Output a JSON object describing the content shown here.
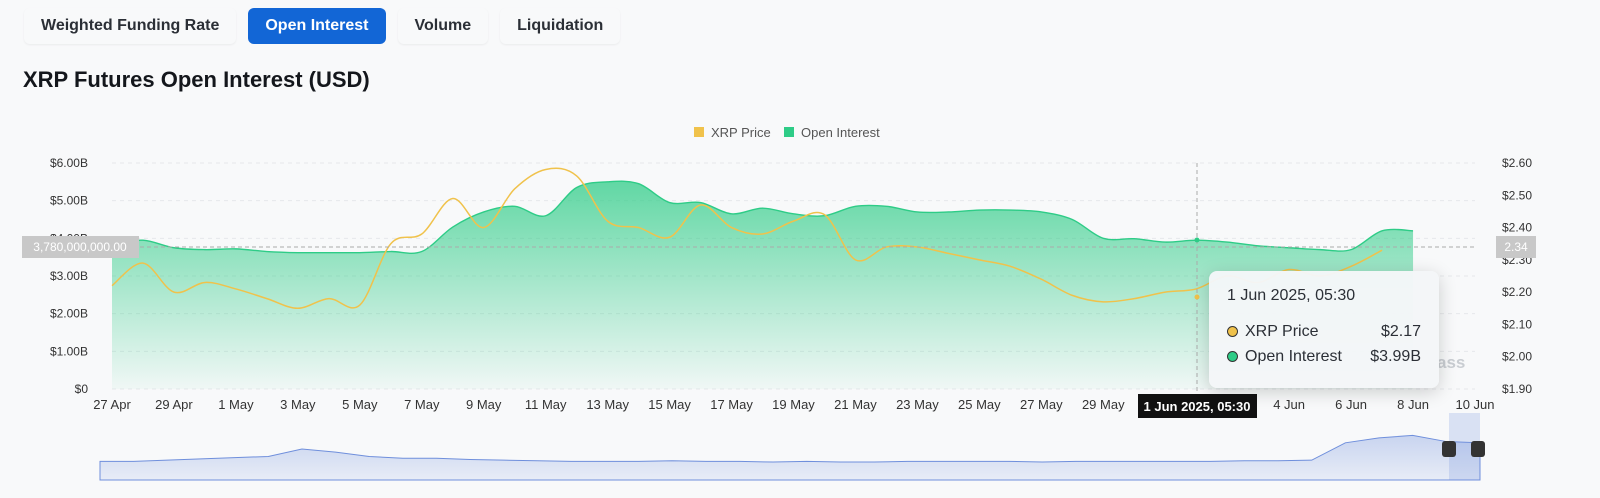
{
  "tabs": [
    {
      "label": "Weighted Funding Rate",
      "active": false
    },
    {
      "label": "Open Interest",
      "active": true
    },
    {
      "label": "Volume",
      "active": false
    },
    {
      "label": "Liquidation",
      "active": false
    }
  ],
  "title": "XRP Futures Open Interest (USD)",
  "colors": {
    "price": "#f0c24b",
    "oi": "#2ecc87",
    "accent": "#1266d6",
    "navigator": "#6f8fdc"
  },
  "crosshair": {
    "date_label": "1 Jun 2025, 05:30",
    "y_left_label": "3,780,000,000.00",
    "y_right_label": "2.34"
  },
  "tooltip": {
    "date": "1 Jun 2025, 05:30",
    "rows": [
      {
        "name": "XRP Price",
        "value": "$2.17",
        "color": "#f0c24b"
      },
      {
        "name": "Open Interest",
        "value": "$3.99B",
        "color": "#2ecc87"
      }
    ]
  },
  "watermark": "ass",
  "chart_data": {
    "type": "area",
    "title": "XRP Futures Open Interest (USD)",
    "legend": [
      "XRP Price",
      "Open Interest"
    ],
    "legend_position": "top-center",
    "x_tick_labels": [
      "27 Apr",
      "29 Apr",
      "1 May",
      "3 May",
      "5 May",
      "7 May",
      "9 May",
      "11 May",
      "13 May",
      "15 May",
      "17 May",
      "19 May",
      "21 May",
      "23 May",
      "25 May",
      "27 May",
      "29 May",
      "4 Jun",
      "6 Jun",
      "8 Jun",
      "10 Jun"
    ],
    "y_left_ticks": [
      "$0",
      "$1.00B",
      "$2.00B",
      "$3.00B",
      "$4.00B",
      "$5.00B",
      "$6.00B"
    ],
    "y_left_range": [
      0,
      6
    ],
    "y_right_ticks": [
      "$1.90",
      "$2.00",
      "$2.10",
      "$2.20",
      "$2.30",
      "$2.40",
      "$2.50",
      "$2.60"
    ],
    "y_right_range": [
      1.9,
      2.6
    ],
    "x_range_days": [
      0,
      44
    ],
    "series": [
      {
        "name": "Open Interest",
        "unit": "USD billions",
        "axis": "left",
        "points": [
          [
            0,
            3.85
          ],
          [
            1,
            3.95
          ],
          [
            2,
            3.75
          ],
          [
            3,
            3.7
          ],
          [
            4,
            3.72
          ],
          [
            5,
            3.65
          ],
          [
            6,
            3.62
          ],
          [
            7,
            3.62
          ],
          [
            8,
            3.62
          ],
          [
            9,
            3.65
          ],
          [
            10,
            3.65
          ],
          [
            11,
            4.3
          ],
          [
            12,
            4.7
          ],
          [
            13,
            4.85
          ],
          [
            14,
            4.6
          ],
          [
            15,
            5.35
          ],
          [
            16,
            5.5
          ],
          [
            17,
            5.45
          ],
          [
            18,
            4.95
          ],
          [
            19,
            4.95
          ],
          [
            20,
            4.65
          ],
          [
            21,
            4.8
          ],
          [
            22,
            4.65
          ],
          [
            23,
            4.6
          ],
          [
            24,
            4.85
          ],
          [
            25,
            4.85
          ],
          [
            26,
            4.7
          ],
          [
            27,
            4.7
          ],
          [
            28,
            4.75
          ],
          [
            29,
            4.75
          ],
          [
            30,
            4.7
          ],
          [
            31,
            4.5
          ],
          [
            32,
            4.0
          ],
          [
            33,
            3.99
          ],
          [
            34,
            3.9
          ],
          [
            35,
            3.95
          ],
          [
            36,
            3.9
          ],
          [
            37,
            3.8
          ],
          [
            38,
            3.75
          ],
          [
            39,
            3.7
          ],
          [
            40,
            3.7
          ],
          [
            41,
            4.2
          ],
          [
            42,
            4.2
          ]
        ]
      },
      {
        "name": "XRP Price",
        "unit": "USD",
        "axis": "right",
        "points": [
          [
            0,
            2.22
          ],
          [
            1,
            2.29
          ],
          [
            2,
            2.2
          ],
          [
            3,
            2.23
          ],
          [
            4,
            2.21
          ],
          [
            5,
            2.18
          ],
          [
            6,
            2.15
          ],
          [
            7,
            2.18
          ],
          [
            8,
            2.16
          ],
          [
            9,
            2.35
          ],
          [
            10,
            2.38
          ],
          [
            11,
            2.49
          ],
          [
            12,
            2.4
          ],
          [
            13,
            2.52
          ],
          [
            14,
            2.58
          ],
          [
            15,
            2.56
          ],
          [
            16,
            2.42
          ],
          [
            17,
            2.4
          ],
          [
            18,
            2.37
          ],
          [
            19,
            2.47
          ],
          [
            20,
            2.4
          ],
          [
            21,
            2.38
          ],
          [
            22,
            2.42
          ],
          [
            23,
            2.44
          ],
          [
            24,
            2.3
          ],
          [
            25,
            2.34
          ],
          [
            26,
            2.34
          ],
          [
            27,
            2.32
          ],
          [
            28,
            2.3
          ],
          [
            29,
            2.28
          ],
          [
            30,
            2.24
          ],
          [
            31,
            2.19
          ],
          [
            32,
            2.17
          ],
          [
            33,
            2.18
          ],
          [
            34,
            2.2
          ],
          [
            35,
            2.21
          ],
          [
            36,
            2.25
          ],
          [
            37,
            2.23
          ],
          [
            38,
            2.27
          ],
          [
            39,
            2.25
          ],
          [
            40,
            2.28
          ],
          [
            41,
            2.33
          ]
        ]
      }
    ],
    "navigator_values": [
      0.3,
      0.3,
      0.32,
      0.34,
      0.36,
      0.38,
      0.5,
      0.45,
      0.38,
      0.35,
      0.35,
      0.33,
      0.32,
      0.31,
      0.3,
      0.3,
      0.3,
      0.31,
      0.3,
      0.3,
      0.29,
      0.3,
      0.29,
      0.29,
      0.3,
      0.3,
      0.3,
      0.3,
      0.29,
      0.3,
      0.3,
      0.3,
      0.3,
      0.3,
      0.31,
      0.31,
      0.32,
      0.6,
      0.68,
      0.72,
      0.62,
      0.6
    ],
    "grid": true
  }
}
